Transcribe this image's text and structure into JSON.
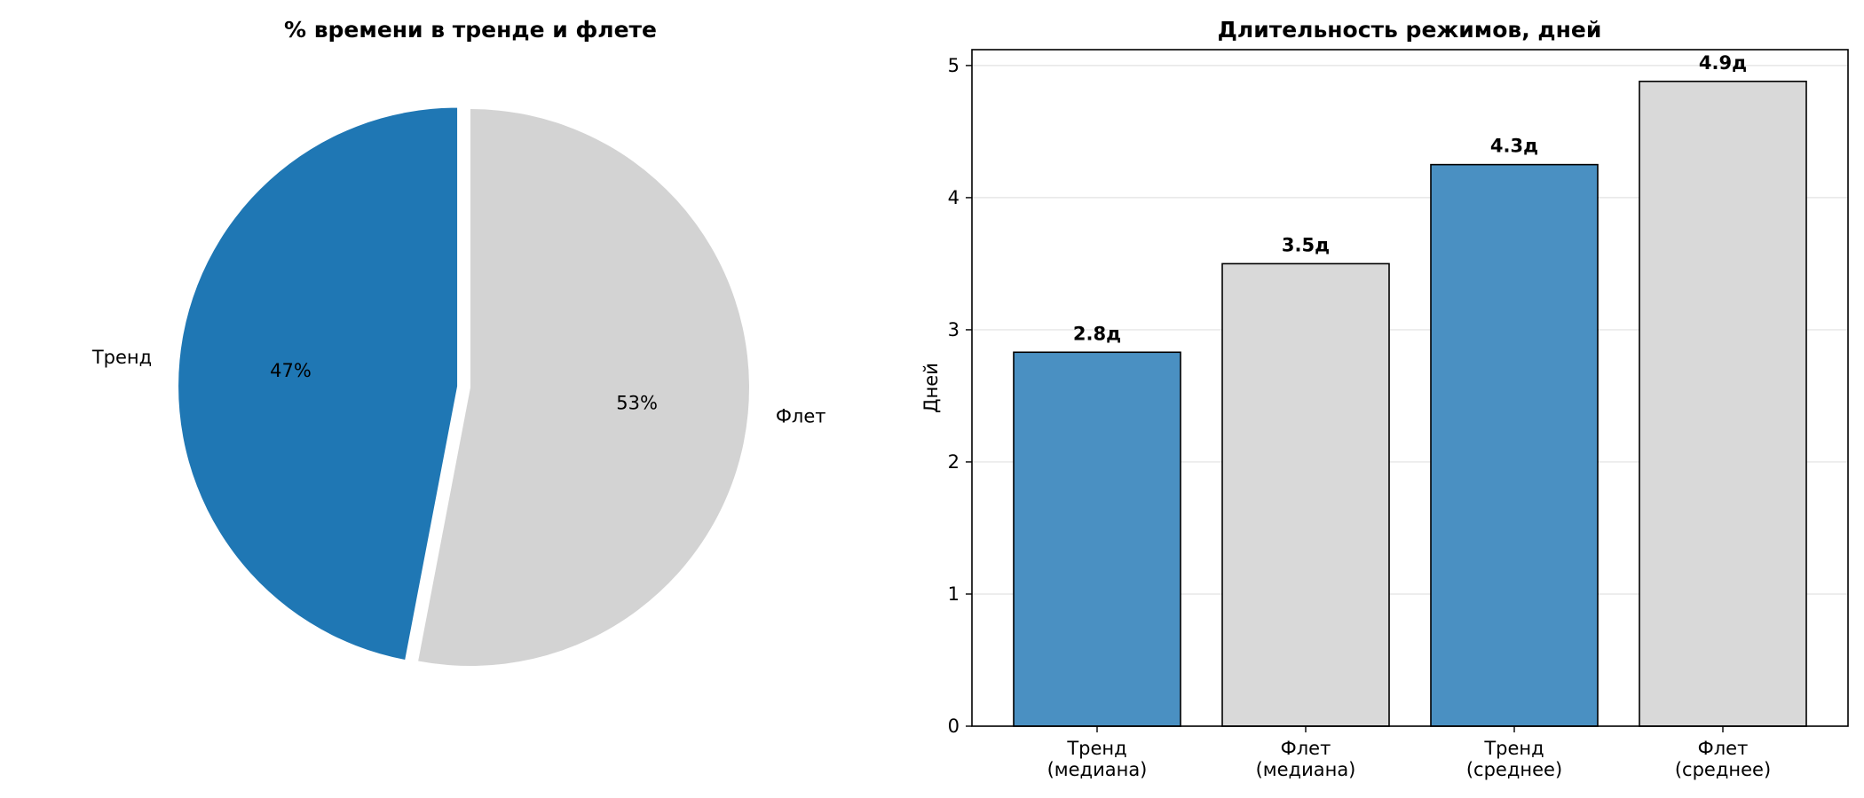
{
  "chart_data": [
    {
      "type": "pie",
      "title": "% времени в тренде и флете",
      "slices": [
        {
          "label": "Тренд",
          "value": 47,
          "pct_label": "47%",
          "color": "#1f77b4",
          "exploded": true
        },
        {
          "label": "Флет",
          "value": 53,
          "pct_label": "53%",
          "color": "#d3d3d3",
          "exploded": false
        }
      ],
      "start_angle": 90,
      "direction": "counterclockwise"
    },
    {
      "type": "bar",
      "title": "Длительность режимов, дней",
      "ylabel": "Дней",
      "xlabel": "",
      "ylim": [
        0,
        5.12
      ],
      "yticks": [
        0,
        1,
        2,
        3,
        4,
        5
      ],
      "grid": "y",
      "categories": [
        "Тренд\n(медиана)",
        "Флет\n(медиана)",
        "Тренд\n(среднее)",
        "Флет\n(среднее)"
      ],
      "values": [
        2.83,
        3.5,
        4.25,
        4.88
      ],
      "value_labels": [
        "2.8д",
        "3.5д",
        "4.3д",
        "4.9д"
      ],
      "colors": [
        "#4a90c2",
        "#d9d9d9",
        "#4a90c2",
        "#d9d9d9"
      ],
      "edge_color": "#000000"
    }
  ]
}
